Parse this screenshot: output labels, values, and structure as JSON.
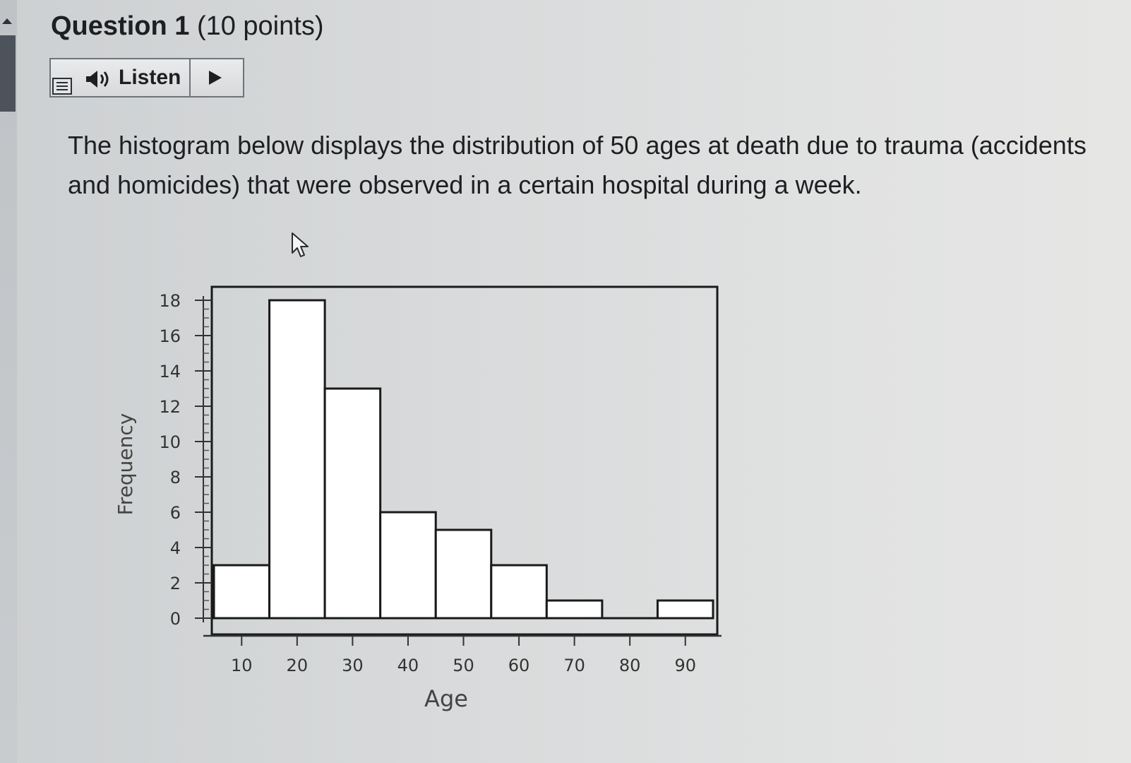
{
  "question": {
    "title": "Question 1",
    "points": "(10 points)"
  },
  "listen_widget": {
    "label": "Listen",
    "icons": [
      "menu-icon",
      "speaker-icon",
      "play-icon"
    ]
  },
  "prompt": {
    "text": "The histogram below displays the distribution of 50 ages at death due to trauma (accidents and homicides) that were observed in a certain hospital during a week."
  },
  "chart_data": {
    "type": "bar",
    "title": "",
    "xlabel": "Age",
    "ylabel": "Frequency",
    "bin_width": 10,
    "categories": [
      "5–15",
      "15–25",
      "25–35",
      "35–45",
      "45–55",
      "55–65",
      "65–75",
      "75–85",
      "85–95"
    ],
    "bin_centers": [
      10,
      20,
      30,
      40,
      50,
      60,
      70,
      80,
      90
    ],
    "values": [
      3,
      18,
      13,
      6,
      5,
      3,
      1,
      0,
      1
    ],
    "xlim": [
      5,
      95
    ],
    "ylim": [
      0,
      18
    ],
    "xticks": [
      10,
      20,
      30,
      40,
      50,
      60,
      70,
      80,
      90
    ],
    "yticks": [
      0,
      2,
      4,
      6,
      8,
      10,
      12,
      14,
      16,
      18
    ],
    "y_minor_tick_step": 0.5,
    "bar_fill": "#ffffff",
    "bar_stroke": "#1a1a1a",
    "grid": false,
    "legend": "none"
  }
}
